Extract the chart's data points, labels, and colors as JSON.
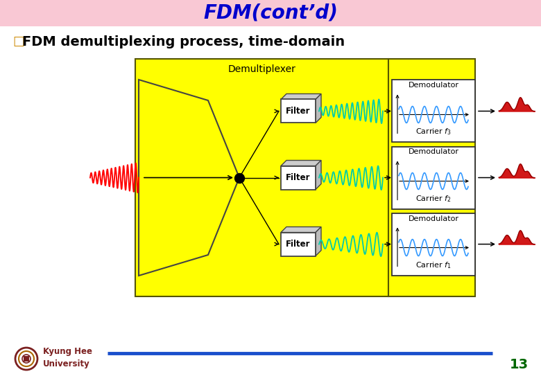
{
  "title": "FDM(cont’d)",
  "title_color": "#0000CC",
  "title_bg_color": "#F9C8D4",
  "subtitle_bullet": "□",
  "subtitle_bullet_color": "#CC8800",
  "subtitle_text": "FDM demultiplexing process, time-domain",
  "subtitle_color": "#000000",
  "subtitle_fontsize": 14,
  "footer_university": "Kyung Hee\nUniversity",
  "footer_univ_color": "#7B2020",
  "footer_line_color": "#1A4FCC",
  "footer_number": "13",
  "footer_number_color": "#006600",
  "bg_color": "#FFFFFF",
  "title_fontsize": 20,
  "page_bg": "#FFFFFF",
  "demux_label": "Demultiplexer",
  "filter_label": "Filter",
  "demod_label": "Demodulator",
  "carrier_labels": [
    "Carrier $f_1$",
    "Carrier $f_2$",
    "Carrier $f_3$"
  ],
  "yellow_color": "#FFFF00",
  "yellow_edge": "#888800"
}
